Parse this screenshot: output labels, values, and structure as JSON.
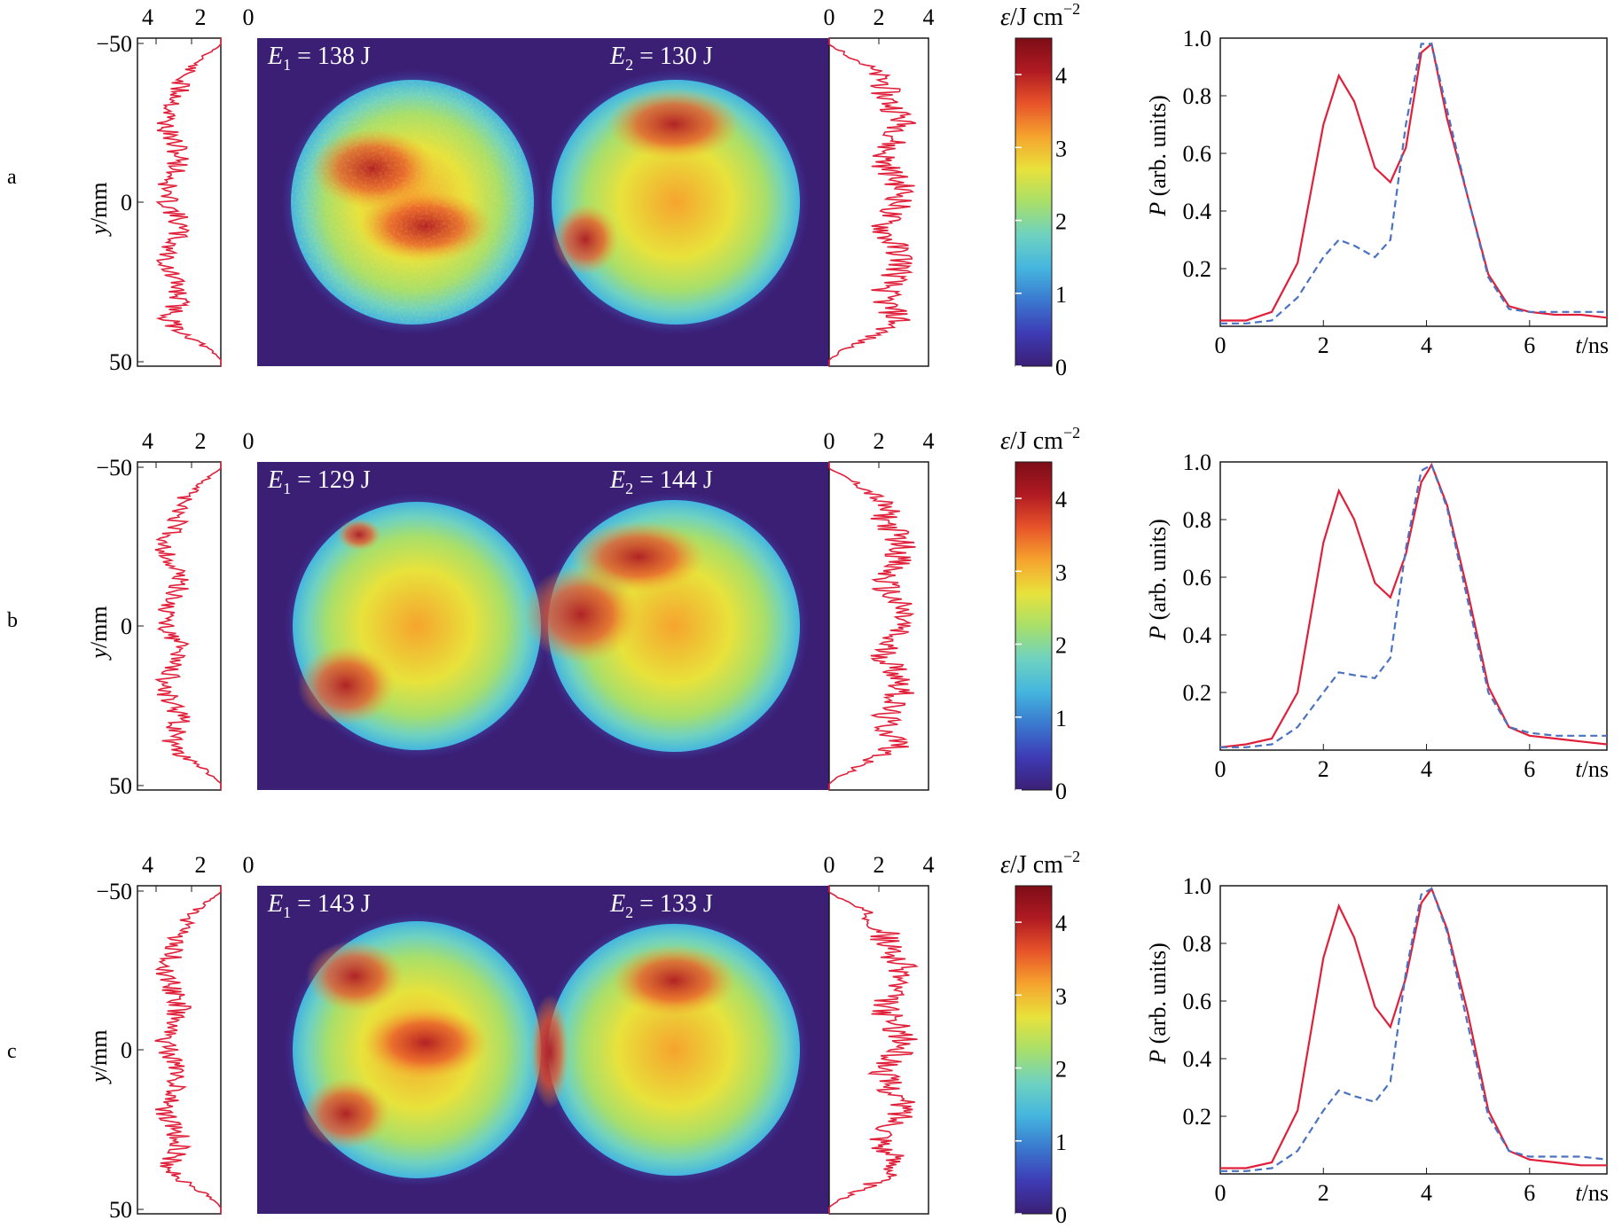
{
  "colors": {
    "pulse_total": "#e0203a",
    "pulse_single": "#4a72c0",
    "profile": "#e0203a",
    "map_background": "#3b1f75"
  },
  "colorbar": {
    "label_symbol": "ε",
    "label_unit": "/J cm",
    "label_exp": "−2",
    "ticks": [
      "0",
      "1",
      "2",
      "3",
      "4"
    ],
    "range": [
      0,
      4.5
    ],
    "stops": [
      "#3b1f75",
      "#3e3bb5",
      "#3a78cf",
      "#45b6df",
      "#6fd2c0",
      "#a8df6a",
      "#e8e23b",
      "#f6a42e",
      "#e8542a",
      "#b01a22",
      "#7d0d17"
    ]
  },
  "panels": [
    {
      "id": "a",
      "label": "a",
      "e1_label": "E",
      "e1_sub": "1",
      "e1_value": " = 138 J",
      "e2_label": "E",
      "e2_sub": "2",
      "e2_value": " = 130 J",
      "pulse_peaks": [
        0.87,
        0.3
      ]
    },
    {
      "id": "b",
      "label": "b",
      "e1_label": "E",
      "e1_sub": "1",
      "e1_value": " = 129 J",
      "e2_label": "E",
      "e2_sub": "2",
      "e2_value": " = 144 J",
      "pulse_peaks": [
        0.9,
        0.27
      ]
    },
    {
      "id": "c",
      "label": "c",
      "e1_label": "E",
      "e1_sub": "1",
      "e1_value": " = 143 J",
      "e2_label": "E",
      "e2_sub": "2",
      "e2_value": " = 133 J",
      "pulse_peaks": [
        0.93,
        0.29
      ]
    }
  ],
  "profile_axes": {
    "top_left_ticks": [
      "4",
      "2",
      "0"
    ],
    "top_right_ticks": [
      "0",
      "2",
      "4"
    ],
    "y_ticks": [
      "−50",
      "0",
      "50"
    ],
    "y_label_var": "y",
    "y_label_unit": "/mm"
  },
  "chart_data": [
    {
      "type": "line",
      "panel": "a",
      "title": "",
      "xlabel": "t/ns",
      "ylabel": "P (arb. units)",
      "xlim": [
        0,
        7.5
      ],
      "ylim": [
        0,
        1.0
      ],
      "xticks": [
        "0",
        "2",
        "4",
        "6"
      ],
      "yticks": [
        "0.2",
        "0.4",
        "0.6",
        "0.8",
        "1.0"
      ],
      "series": [
        {
          "name": "total",
          "style": "solid",
          "x": [
            0,
            0.5,
            1.0,
            1.5,
            2.0,
            2.3,
            2.6,
            3.0,
            3.3,
            3.6,
            3.9,
            4.1,
            4.4,
            4.8,
            5.2,
            5.6,
            6.0,
            6.5,
            7.0,
            7.5
          ],
          "y": [
            0.02,
            0.02,
            0.05,
            0.22,
            0.7,
            0.87,
            0.78,
            0.55,
            0.5,
            0.62,
            0.95,
            0.98,
            0.72,
            0.45,
            0.18,
            0.07,
            0.05,
            0.04,
            0.04,
            0.03
          ]
        },
        {
          "name": "single",
          "style": "dashed",
          "x": [
            0,
            0.5,
            1.0,
            1.5,
            2.0,
            2.3,
            2.6,
            3.0,
            3.3,
            3.6,
            3.9,
            4.1,
            4.4,
            4.8,
            5.2,
            5.6,
            6.0,
            6.5,
            7.0,
            7.5
          ],
          "y": [
            0.01,
            0.01,
            0.02,
            0.1,
            0.24,
            0.3,
            0.28,
            0.24,
            0.3,
            0.7,
            0.98,
            0.98,
            0.75,
            0.45,
            0.17,
            0.06,
            0.05,
            0.05,
            0.05,
            0.05
          ]
        }
      ]
    },
    {
      "type": "line",
      "panel": "b",
      "title": "",
      "xlabel": "t/ns",
      "ylabel": "P (arb. units)",
      "xlim": [
        0,
        7.5
      ],
      "ylim": [
        0,
        1.0
      ],
      "xticks": [
        "0",
        "2",
        "4",
        "6"
      ],
      "yticks": [
        "0.2",
        "0.4",
        "0.6",
        "0.8",
        "1.0"
      ],
      "series": [
        {
          "name": "total",
          "style": "solid",
          "x": [
            0,
            0.5,
            1.0,
            1.5,
            2.0,
            2.3,
            2.6,
            3.0,
            3.3,
            3.6,
            3.9,
            4.1,
            4.4,
            4.8,
            5.2,
            5.6,
            6.0,
            6.5,
            7.0,
            7.5
          ],
          "y": [
            0.01,
            0.02,
            0.04,
            0.2,
            0.72,
            0.9,
            0.8,
            0.58,
            0.53,
            0.68,
            0.93,
            0.99,
            0.85,
            0.55,
            0.22,
            0.08,
            0.05,
            0.04,
            0.03,
            0.02
          ]
        },
        {
          "name": "single",
          "style": "dashed",
          "x": [
            0,
            0.5,
            1.0,
            1.5,
            2.0,
            2.3,
            2.6,
            3.0,
            3.3,
            3.6,
            3.9,
            4.1,
            4.4,
            4.8,
            5.2,
            5.6,
            6.0,
            6.5,
            7.0,
            7.5
          ],
          "y": [
            0.01,
            0.01,
            0.02,
            0.08,
            0.2,
            0.27,
            0.26,
            0.25,
            0.32,
            0.7,
            0.97,
            0.99,
            0.84,
            0.52,
            0.2,
            0.08,
            0.06,
            0.05,
            0.05,
            0.05
          ]
        }
      ]
    },
    {
      "type": "line",
      "panel": "c",
      "title": "",
      "xlabel": "t/ns",
      "ylabel": "P (arb. units)",
      "xlim": [
        0,
        7.5
      ],
      "ylim": [
        0,
        1.0
      ],
      "xticks": [
        "0",
        "2",
        "4",
        "6"
      ],
      "yticks": [
        "0.2",
        "0.4",
        "0.6",
        "0.8",
        "1.0"
      ],
      "series": [
        {
          "name": "total",
          "style": "solid",
          "x": [
            0,
            0.5,
            1.0,
            1.5,
            2.0,
            2.3,
            2.6,
            3.0,
            3.3,
            3.6,
            3.9,
            4.1,
            4.4,
            4.8,
            5.2,
            5.6,
            6.0,
            6.5,
            7.0,
            7.5
          ],
          "y": [
            0.02,
            0.02,
            0.04,
            0.22,
            0.75,
            0.93,
            0.82,
            0.58,
            0.51,
            0.68,
            0.94,
            0.99,
            0.85,
            0.56,
            0.22,
            0.08,
            0.05,
            0.04,
            0.03,
            0.03
          ]
        },
        {
          "name": "single",
          "style": "dashed",
          "x": [
            0,
            0.5,
            1.0,
            1.5,
            2.0,
            2.3,
            2.6,
            3.0,
            3.3,
            3.6,
            3.9,
            4.1,
            4.4,
            4.8,
            5.2,
            5.6,
            6.0,
            6.5,
            7.0,
            7.5
          ],
          "y": [
            0.01,
            0.01,
            0.02,
            0.08,
            0.22,
            0.29,
            0.27,
            0.25,
            0.32,
            0.7,
            0.97,
            0.99,
            0.84,
            0.52,
            0.2,
            0.08,
            0.06,
            0.06,
            0.06,
            0.05
          ]
        }
      ]
    }
  ]
}
